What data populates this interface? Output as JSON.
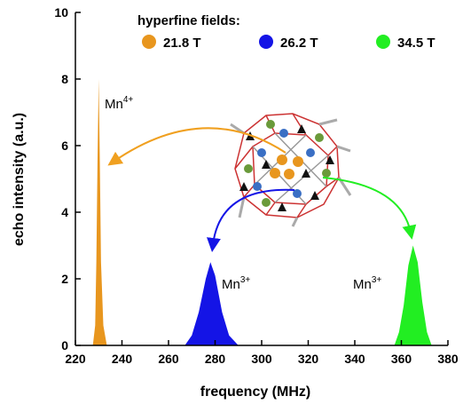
{
  "chart_data": {
    "type": "area",
    "xlabel": "frequency  (MHz)",
    "ylabel": "echo intensity  (a.u.)",
    "legend_title": "hyperfine fields:",
    "xlim": [
      220,
      380
    ],
    "xticks": [
      220,
      240,
      260,
      280,
      300,
      320,
      340,
      360,
      380
    ],
    "ylim": [
      0,
      10
    ],
    "yticks": [
      0,
      2,
      4,
      6,
      8,
      10
    ],
    "series": [
      {
        "name": "21.8 T",
        "color": "#e8961e",
        "x": [
          227.5,
          228.5,
          229,
          229.5,
          230,
          230.5,
          231,
          232,
          233.5
        ],
        "values": [
          0,
          0.6,
          2.5,
          5.5,
          8,
          5.5,
          2.5,
          0.6,
          0
        ]
      },
      {
        "name": "26.2 T",
        "color": "#1414e6",
        "x": [
          267,
          270,
          273,
          276,
          278,
          280,
          283,
          286,
          290
        ],
        "values": [
          0,
          0.3,
          1.0,
          2.0,
          2.5,
          2.1,
          1.0,
          0.3,
          0
        ]
      },
      {
        "name": "34.5 T",
        "color": "#22ee22",
        "x": [
          357,
          359,
          361,
          363,
          365,
          367,
          369,
          371,
          373
        ],
        "values": [
          0,
          0.4,
          1.2,
          2.4,
          3.0,
          2.5,
          1.3,
          0.4,
          0
        ]
      }
    ],
    "annotations": [
      {
        "text": "Mn",
        "sup": "4+"
      },
      {
        "text": "Mn",
        "sup": "3+"
      },
      {
        "text": "Mn",
        "sup": "3+"
      }
    ]
  }
}
